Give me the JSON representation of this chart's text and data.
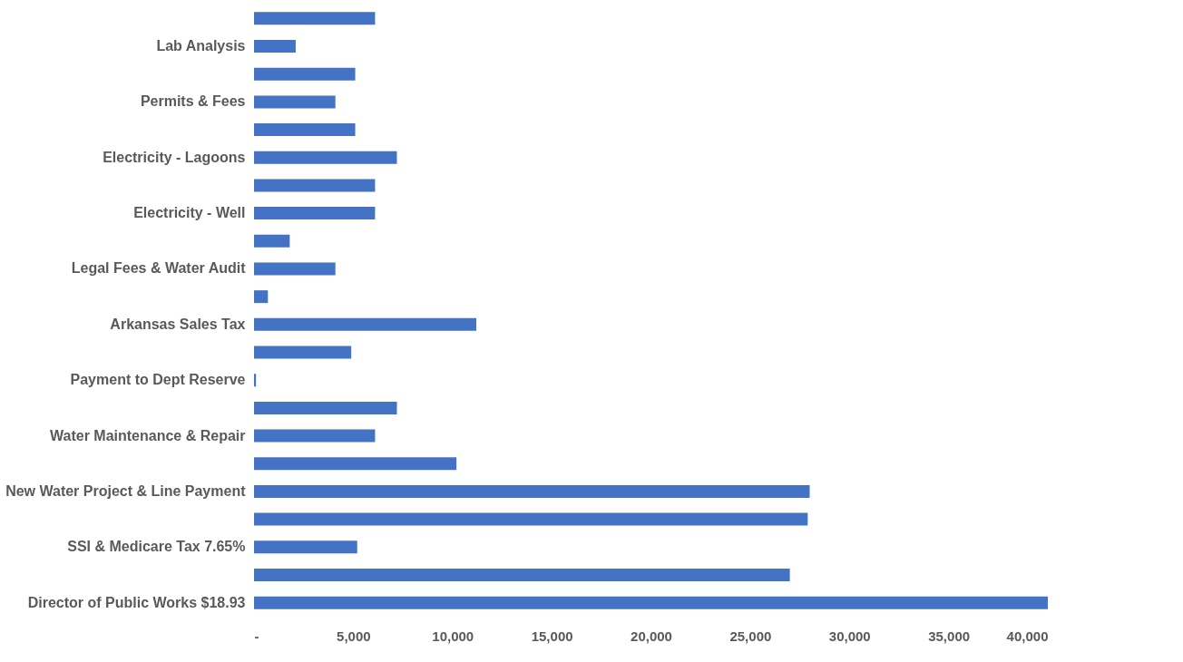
{
  "chart_data": {
    "type": "bar",
    "orientation": "horizontal",
    "categories": [
      null,
      "Lab Analysis",
      null,
      "Permits & Fees",
      null,
      "Electricity - Lagoons",
      null,
      "Electricity - Well",
      null,
      "Legal Fees & Water Audit",
      null,
      "Arkansas Sales Tax",
      null,
      "Payment to Dept Reserve",
      null,
      "Water Maintenance & Repair",
      null,
      "New Water Project & Line Payment",
      null,
      "SSI & Medicare Tax 7.65%",
      null,
      "Director of Public Works $18.93"
    ],
    "values": [
      6100,
      2100,
      5100,
      4100,
      5100,
      7200,
      6100,
      6100,
      1800,
      4100,
      700,
      11200,
      4900,
      100,
      7200,
      6100,
      10200,
      28000,
      27900,
      5200,
      27000,
      40000
    ],
    "color": "#4472c4",
    "xlim": [
      0,
      40000
    ],
    "xticks": [
      {
        "value": 0,
        "label": "-"
      },
      {
        "value": 5000,
        "label": "5,000"
      },
      {
        "value": 10000,
        "label": "10,000"
      },
      {
        "value": 15000,
        "label": "15,000"
      },
      {
        "value": 20000,
        "label": "20,000"
      },
      {
        "value": 25000,
        "label": "25,000"
      },
      {
        "value": 30000,
        "label": "30,000"
      },
      {
        "value": 35000,
        "label": "35,000"
      },
      {
        "value": 40000,
        "label": "40,000"
      }
    ],
    "grid": false
  }
}
